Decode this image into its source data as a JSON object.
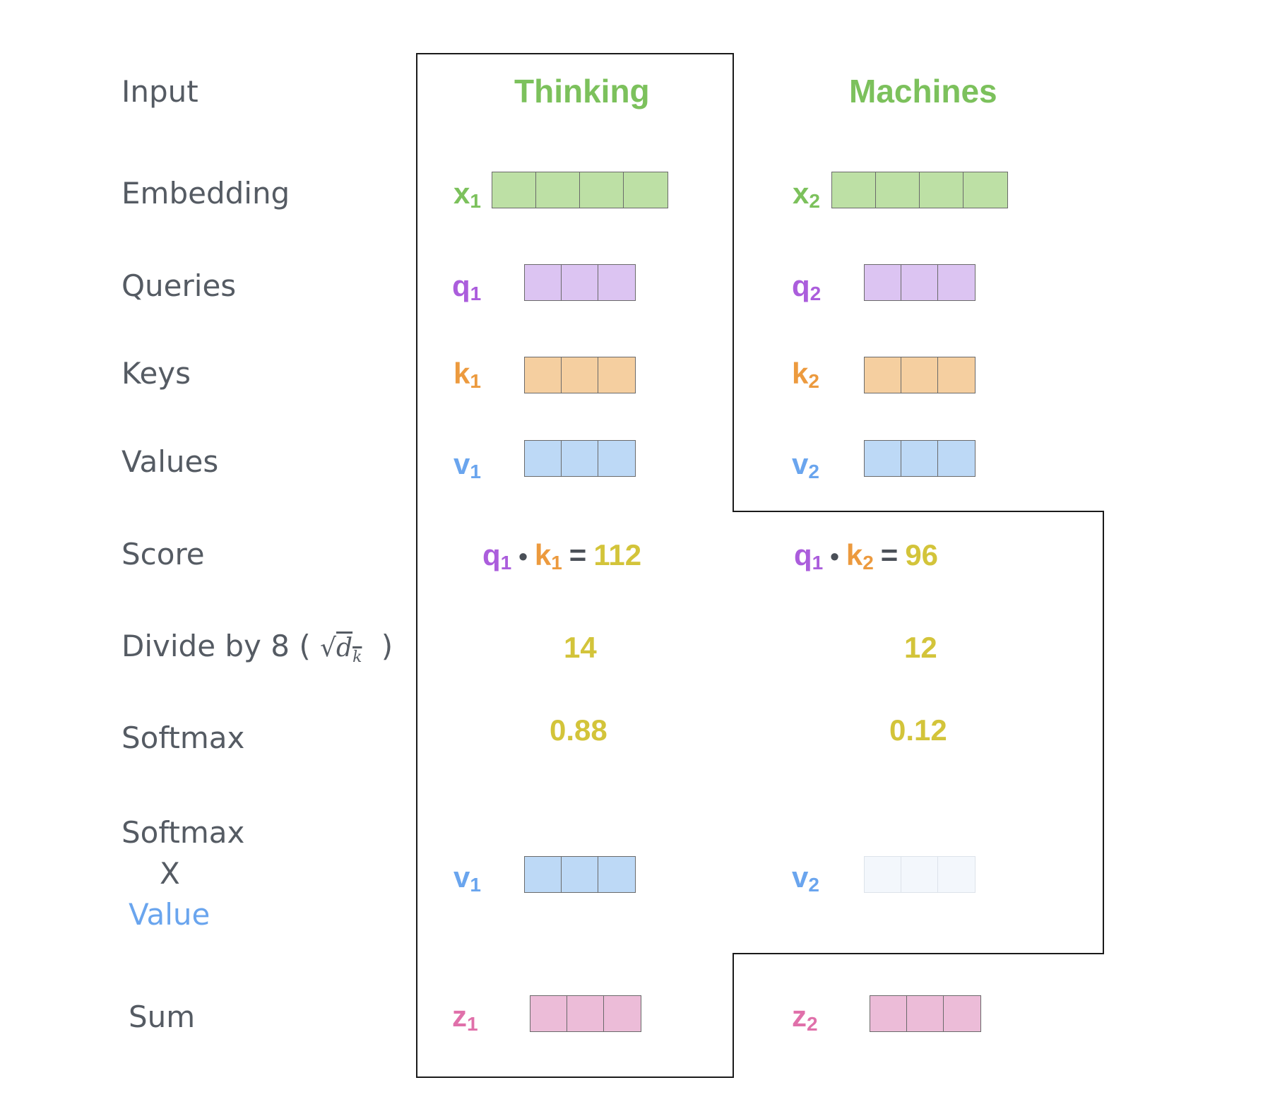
{
  "rows": {
    "input": "Input",
    "embedding": "Embedding",
    "queries": "Queries",
    "keys": "Keys",
    "values": "Values",
    "score": "Score",
    "divide_prefix": "Divide by 8 (",
    "divide_sqrt": "d",
    "divide_sqrt_sub": "k",
    "divide_suffix": ")",
    "softmax": "Softmax",
    "softmax_value_1": "Softmax",
    "softmax_value_2": "X",
    "softmax_value_3": "Value",
    "sum": "Sum"
  },
  "words": [
    "Thinking",
    "Machines"
  ],
  "vectors": {
    "x1": {
      "base": "x",
      "sub": "1"
    },
    "x2": {
      "base": "x",
      "sub": "2"
    },
    "q1": {
      "base": "q",
      "sub": "1"
    },
    "q2": {
      "base": "q",
      "sub": "2"
    },
    "k1": {
      "base": "k",
      "sub": "1"
    },
    "k2": {
      "base": "k",
      "sub": "2"
    },
    "v1": {
      "base": "v",
      "sub": "1"
    },
    "v2": {
      "base": "v",
      "sub": "2"
    },
    "z1": {
      "base": "z",
      "sub": "1"
    },
    "z2": {
      "base": "z",
      "sub": "2"
    }
  },
  "scores": [
    {
      "q": "q",
      "q_sub": "1",
      "dot": "•",
      "k": "k",
      "k_sub": "1",
      "eq": "=",
      "value": "112"
    },
    {
      "q": "q",
      "q_sub": "1",
      "dot": "•",
      "k": "k",
      "k_sub": "2",
      "eq": "=",
      "value": "96"
    }
  ],
  "divided": [
    "14",
    "12"
  ],
  "softmax": [
    "0.88",
    "0.12"
  ],
  "colors": {
    "input": "#7cc15c",
    "query": "#ab5ddc",
    "key": "#ec9a3e",
    "value": "#6aa5ee",
    "output": "#e070aa",
    "number": "#d3c43a"
  }
}
